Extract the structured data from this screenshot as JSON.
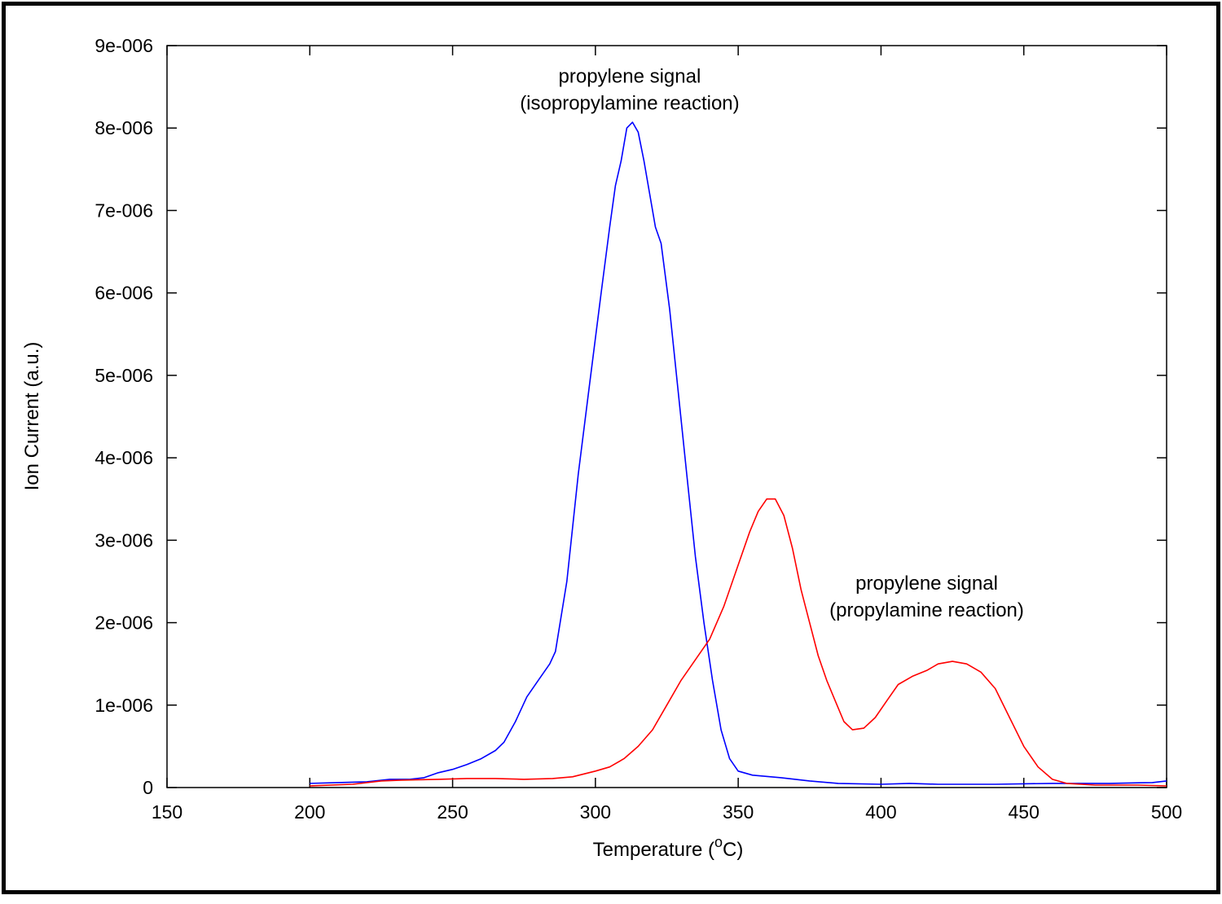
{
  "chart_data": {
    "type": "line",
    "xlabel": "Temperature (",
    "xlabel_superscript": "o",
    "xlabel_suffix": "C)",
    "ylabel": "Ion Current (a.u.)",
    "xlim": [
      150,
      500
    ],
    "ylim": [
      0,
      9e-06
    ],
    "x_ticks": [
      150,
      200,
      250,
      300,
      350,
      400,
      450,
      500
    ],
    "y_ticks": [
      0,
      1e-06,
      2e-06,
      3e-06,
      4e-06,
      5e-06,
      6e-06,
      7e-06,
      8e-06,
      9e-06
    ],
    "x_tick_labels": [
      "150",
      "200",
      "250",
      "300",
      "350",
      "400",
      "450",
      "500"
    ],
    "y_tick_labels": [
      "0",
      "1e-006",
      "2e-006",
      "3e-006",
      "4e-006",
      "5e-006",
      "6e-006",
      "7e-006",
      "8e-006",
      "9e-006"
    ],
    "grid": false,
    "series": [
      {
        "color": "#0000ff",
        "points": [
          [
            200,
            5e-08
          ],
          [
            210,
            6e-08
          ],
          [
            220,
            7e-08
          ],
          [
            228,
            1e-07
          ],
          [
            235,
            1e-07
          ],
          [
            240,
            1.2e-07
          ],
          [
            245,
            1.8e-07
          ],
          [
            250,
            2.2e-07
          ],
          [
            255,
            2.8e-07
          ],
          [
            260,
            3.5e-07
          ],
          [
            265,
            4.5e-07
          ],
          [
            268,
            5.5e-07
          ],
          [
            272,
            8e-07
          ],
          [
            276,
            1.1e-06
          ],
          [
            280,
            1.3e-06
          ],
          [
            284,
            1.5e-06
          ],
          [
            286,
            1.65e-06
          ],
          [
            290,
            2.5e-06
          ],
          [
            294,
            3.8e-06
          ],
          [
            298,
            4.9e-06
          ],
          [
            302,
            6e-06
          ],
          [
            305,
            6.8e-06
          ],
          [
            307,
            7.3e-06
          ],
          [
            309,
            7.6e-06
          ],
          [
            311,
            8e-06
          ],
          [
            313,
            8.07e-06
          ],
          [
            315,
            7.95e-06
          ],
          [
            317,
            7.6e-06
          ],
          [
            319,
            7.2e-06
          ],
          [
            321,
            6.8e-06
          ],
          [
            323,
            6.6e-06
          ],
          [
            326,
            5.8e-06
          ],
          [
            329,
            4.8e-06
          ],
          [
            332,
            3.8e-06
          ],
          [
            335,
            2.8e-06
          ],
          [
            338,
            2e-06
          ],
          [
            341,
            1.3e-06
          ],
          [
            344,
            7e-07
          ],
          [
            347,
            3.5e-07
          ],
          [
            350,
            2e-07
          ],
          [
            355,
            1.5e-07
          ],
          [
            365,
            1.2e-07
          ],
          [
            375,
            8e-08
          ],
          [
            385,
            5e-08
          ],
          [
            400,
            4e-08
          ],
          [
            410,
            5e-08
          ],
          [
            420,
            4e-08
          ],
          [
            440,
            4e-08
          ],
          [
            460,
            5e-08
          ],
          [
            480,
            5e-08
          ],
          [
            495,
            6e-08
          ],
          [
            500,
            8e-08
          ]
        ]
      },
      {
        "color": "#ff0000",
        "points": [
          [
            200,
            2e-08
          ],
          [
            215,
            4e-08
          ],
          [
            225,
            8e-08
          ],
          [
            232,
            9e-08
          ],
          [
            245,
            1e-07
          ],
          [
            255,
            1.1e-07
          ],
          [
            265,
            1.1e-07
          ],
          [
            275,
            1e-07
          ],
          [
            285,
            1.1e-07
          ],
          [
            292,
            1.3e-07
          ],
          [
            300,
            2e-07
          ],
          [
            305,
            2.5e-07
          ],
          [
            310,
            3.5e-07
          ],
          [
            315,
            5e-07
          ],
          [
            320,
            7e-07
          ],
          [
            325,
            1e-06
          ],
          [
            330,
            1.3e-06
          ],
          [
            335,
            1.55e-06
          ],
          [
            340,
            1.8e-06
          ],
          [
            345,
            2.2e-06
          ],
          [
            350,
            2.7e-06
          ],
          [
            354,
            3.1e-06
          ],
          [
            357,
            3.35e-06
          ],
          [
            360,
            3.5e-06
          ],
          [
            363,
            3.5e-06
          ],
          [
            366,
            3.3e-06
          ],
          [
            369,
            2.9e-06
          ],
          [
            372,
            2.4e-06
          ],
          [
            375,
            2e-06
          ],
          [
            378,
            1.6e-06
          ],
          [
            381,
            1.3e-06
          ],
          [
            384,
            1.05e-06
          ],
          [
            387,
            8e-07
          ],
          [
            390,
            7e-07
          ],
          [
            394,
            7.2e-07
          ],
          [
            398,
            8.5e-07
          ],
          [
            402,
            1.05e-06
          ],
          [
            406,
            1.25e-06
          ],
          [
            411,
            1.35e-06
          ],
          [
            416,
            1.42e-06
          ],
          [
            420,
            1.5e-06
          ],
          [
            425,
            1.53e-06
          ],
          [
            430,
            1.5e-06
          ],
          [
            435,
            1.4e-06
          ],
          [
            440,
            1.2e-06
          ],
          [
            445,
            8.5e-07
          ],
          [
            450,
            5e-07
          ],
          [
            455,
            2.5e-07
          ],
          [
            460,
            1e-07
          ],
          [
            465,
            5e-08
          ],
          [
            475,
            3e-08
          ],
          [
            490,
            3e-08
          ],
          [
            500,
            2e-08
          ]
        ]
      }
    ],
    "annotations": [
      {
        "lines": [
          "propylene signal",
          "(isopropylamine reaction)"
        ],
        "x": 312,
        "y": 8.55e-06
      },
      {
        "lines": [
          "propylene signal",
          "(propylamine reaction)"
        ],
        "x": 416,
        "y": 2.4e-06
      }
    ]
  }
}
